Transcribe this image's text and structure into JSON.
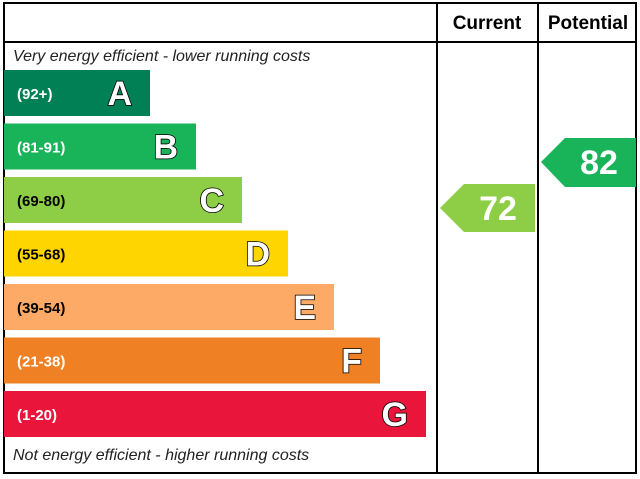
{
  "header": {
    "current": "Current",
    "potential": "Potential"
  },
  "top_note": "Very energy efficient - lower running costs",
  "bottom_note": "Not energy efficient - higher running costs",
  "bands": [
    {
      "range": "(92+)",
      "letter": "A",
      "color": "#008054"
    },
    {
      "range": "(81-91)",
      "letter": "B",
      "color": "#19b459"
    },
    {
      "range": "(69-80)",
      "letter": "C",
      "color": "#8dce46"
    },
    {
      "range": "(55-68)",
      "letter": "D",
      "color": "#ffd500"
    },
    {
      "range": "(39-54)",
      "letter": "E",
      "color": "#fcaa65"
    },
    {
      "range": "(21-38)",
      "letter": "F",
      "color": "#ef8023"
    },
    {
      "range": "(1-20)",
      "letter": "G",
      "color": "#e9153b"
    }
  ],
  "current": {
    "value": 72,
    "color": "#8dce46"
  },
  "potential": {
    "value": 82,
    "color": "#19b459"
  }
}
